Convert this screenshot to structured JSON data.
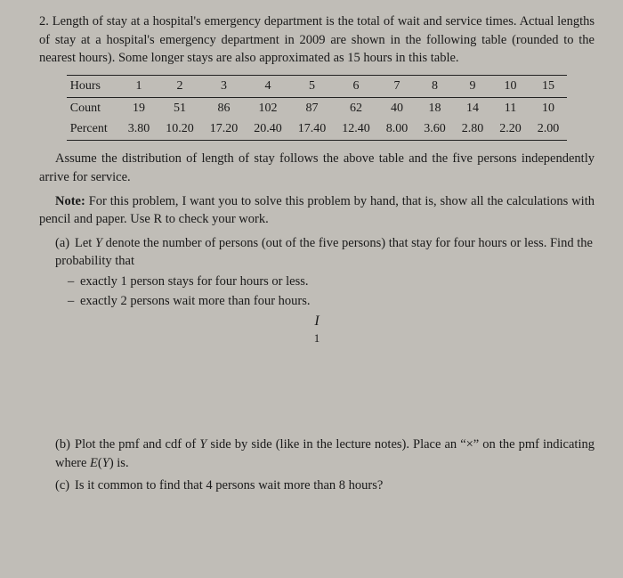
{
  "q": {
    "num": "2.",
    "p1": "Length of stay at a hospital's emergency department is the total of wait and service times. Actual lengths of stay at a hospital's emergency department in 2009 are shown in the following table (rounded to the nearest hours). Some longer stays are also approximated as 15 hours in this table.",
    "p2": "Assume the distribution of length of stay follows the above table and the five persons independently arrive for service.",
    "note_label": "Note:",
    "note_text": " For this problem, I want you to solve this problem by hand, that is, show all the calculations with pencil and paper. Use R to check your work.",
    "a_label": "(a)",
    "a_text": "Let Y denote the number of persons (out of the five persons) that stay for four hours or less. Find the probability that",
    "a1": "exactly 1 person stays for four hours or less.",
    "a2": "exactly 2 persons wait more than four hours.",
    "cursor": "I",
    "cursor_sub": "1",
    "b_label": "(b)",
    "b_text": "Plot the pmf and cdf of Y side by side (like in the lecture notes). Place an \"×\" on the pmf indicating where E(Y) is.",
    "c_label": "(c)",
    "c_text": "Is it common to find that 4 persons wait more than 8 hours?"
  },
  "table": {
    "rows": [
      {
        "label": "Hours",
        "cells": [
          "1",
          "2",
          "3",
          "4",
          "5",
          "6",
          "7",
          "8",
          "9",
          "10",
          "15"
        ]
      },
      {
        "label": "Count",
        "cells": [
          "19",
          "51",
          "86",
          "102",
          "87",
          "62",
          "40",
          "18",
          "14",
          "11",
          "10"
        ]
      },
      {
        "label": "Percent",
        "cells": [
          "3.80",
          "10.20",
          "17.20",
          "20.40",
          "17.40",
          "12.40",
          "8.00",
          "3.60",
          "2.80",
          "2.20",
          "2.00"
        ]
      }
    ]
  }
}
